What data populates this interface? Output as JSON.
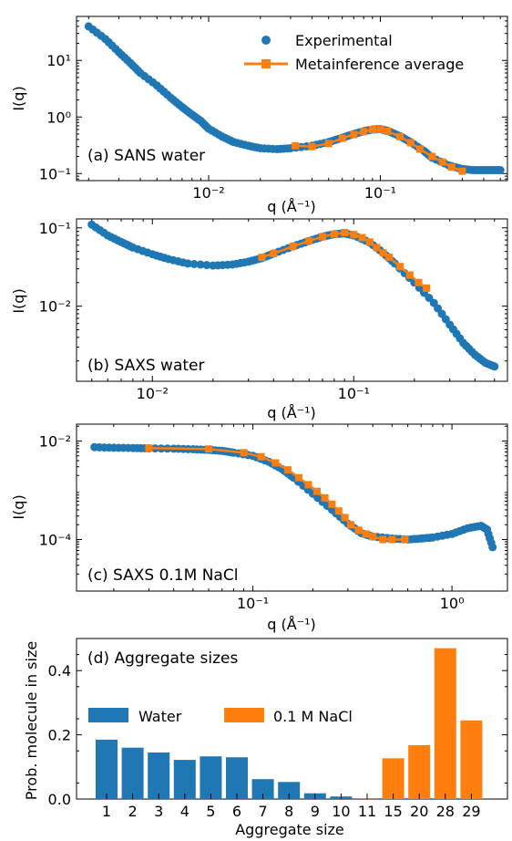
{
  "colors": {
    "blue": "#1f77b4",
    "orange": "#ff7f0e"
  },
  "chart_data": [
    {
      "type": "scatter",
      "panel_label": "(a) SANS water",
      "xlabel": "q (Å⁻¹)",
      "ylabel": "I(q)",
      "xscale": "log",
      "yscale": "log",
      "xlim": [
        0.0017,
        0.55
      ],
      "ylim": [
        0.075,
        60
      ],
      "xticks": [
        {
          "v": 0.01,
          "label": "10⁻²"
        },
        {
          "v": 0.1,
          "label": "10⁻¹"
        }
      ],
      "yticks": [
        {
          "v": 0.1,
          "label": "10⁻¹"
        },
        {
          "v": 1,
          "label": "10⁰"
        },
        {
          "v": 10,
          "label": "10¹"
        }
      ],
      "legend": {
        "position": "top-right",
        "entries": [
          "Experimental",
          "Metainference average"
        ]
      },
      "series": [
        {
          "name": "Experimental",
          "points": [
            [
              0.002,
              40
            ],
            [
              0.0025,
              24
            ],
            [
              0.003,
              14
            ],
            [
              0.0035,
              9
            ],
            [
              0.004,
              6
            ],
            [
              0.005,
              3.6
            ],
            [
              0.006,
              2.2
            ],
            [
              0.007,
              1.5
            ],
            [
              0.008,
              1.1
            ],
            [
              0.009,
              0.85
            ],
            [
              0.01,
              0.62
            ],
            [
              0.012,
              0.45
            ],
            [
              0.014,
              0.36
            ],
            [
              0.017,
              0.31
            ],
            [
              0.02,
              0.28
            ],
            [
              0.025,
              0.27
            ],
            [
              0.03,
              0.28
            ],
            [
              0.04,
              0.31
            ],
            [
              0.05,
              0.36
            ],
            [
              0.06,
              0.43
            ],
            [
              0.07,
              0.5
            ],
            [
              0.08,
              0.56
            ],
            [
              0.09,
              0.6
            ],
            [
              0.1,
              0.61
            ],
            [
              0.11,
              0.57
            ],
            [
              0.13,
              0.46
            ],
            [
              0.15,
              0.36
            ],
            [
              0.18,
              0.25
            ],
            [
              0.2,
              0.19
            ],
            [
              0.25,
              0.14
            ],
            [
              0.3,
              0.12
            ],
            [
              0.35,
              0.115
            ],
            [
              0.4,
              0.115
            ],
            [
              0.45,
              0.115
            ],
            [
              0.5,
              0.115
            ]
          ]
        },
        {
          "name": "Metainference average",
          "points": [
            [
              0.032,
              0.31
            ],
            [
              0.04,
              0.3
            ],
            [
              0.05,
              0.34
            ],
            [
              0.06,
              0.42
            ],
            [
              0.07,
              0.49
            ],
            [
              0.08,
              0.55
            ],
            [
              0.09,
              0.6
            ],
            [
              0.1,
              0.6
            ],
            [
              0.11,
              0.56
            ],
            [
              0.13,
              0.45
            ],
            [
              0.15,
              0.35
            ],
            [
              0.17,
              0.27
            ],
            [
              0.2,
              0.2
            ],
            [
              0.23,
              0.16
            ],
            [
              0.26,
              0.13
            ],
            [
              0.3,
              0.11
            ]
          ]
        }
      ]
    },
    {
      "type": "scatter",
      "panel_label": "(b) SAXS water",
      "xlabel": "q (Å⁻¹)",
      "ylabel": "I(q)",
      "xscale": "log",
      "yscale": "log",
      "xlim": [
        0.0042,
        0.58
      ],
      "ylim": [
        0.0011,
        0.13
      ],
      "xticks": [
        {
          "v": 0.01,
          "label": "10⁻²"
        },
        {
          "v": 0.1,
          "label": "10⁻¹"
        }
      ],
      "yticks": [
        {
          "v": 0.01,
          "label": "10⁻²"
        },
        {
          "v": 0.1,
          "label": "10⁻¹"
        }
      ],
      "series": [
        {
          "name": "Experimental",
          "points": [
            [
              0.005,
              0.11
            ],
            [
              0.006,
              0.08
            ],
            [
              0.007,
              0.066
            ],
            [
              0.008,
              0.056
            ],
            [
              0.01,
              0.046
            ],
            [
              0.012,
              0.04
            ],
            [
              0.015,
              0.035
            ],
            [
              0.02,
              0.033
            ],
            [
              0.025,
              0.034
            ],
            [
              0.03,
              0.037
            ],
            [
              0.035,
              0.041
            ],
            [
              0.04,
              0.047
            ],
            [
              0.05,
              0.058
            ],
            [
              0.06,
              0.068
            ],
            [
              0.07,
              0.077
            ],
            [
              0.08,
              0.083
            ],
            [
              0.09,
              0.085
            ],
            [
              0.1,
              0.08
            ],
            [
              0.12,
              0.065
            ],
            [
              0.14,
              0.048
            ],
            [
              0.16,
              0.035
            ],
            [
              0.2,
              0.02
            ],
            [
              0.25,
              0.011
            ],
            [
              0.3,
              0.0058
            ],
            [
              0.35,
              0.0034
            ],
            [
              0.4,
              0.0024
            ],
            [
              0.45,
              0.0019
            ],
            [
              0.5,
              0.0017
            ]
          ]
        },
        {
          "name": "Metainference average",
          "points": [
            [
              0.035,
              0.042
            ],
            [
              0.04,
              0.047
            ],
            [
              0.05,
              0.058
            ],
            [
              0.06,
              0.068
            ],
            [
              0.07,
              0.077
            ],
            [
              0.08,
              0.083
            ],
            [
              0.09,
              0.087
            ],
            [
              0.1,
              0.082
            ],
            [
              0.11,
              0.075
            ],
            [
              0.12,
              0.066
            ],
            [
              0.13,
              0.056
            ],
            [
              0.14,
              0.048
            ],
            [
              0.15,
              0.042
            ],
            [
              0.17,
              0.032
            ],
            [
              0.19,
              0.025
            ],
            [
              0.21,
              0.02
            ],
            [
              0.23,
              0.017
            ]
          ]
        }
      ]
    },
    {
      "type": "scatter",
      "panel_label": "(c) SAXS 0.1M NaCl",
      "xlabel": "q (Å⁻¹)",
      "ylabel": "I(q)",
      "xscale": "log",
      "yscale": "log",
      "xlim": [
        0.013,
        1.9
      ],
      "ylim": [
        9e-06,
        0.022
      ],
      "xticks": [
        {
          "v": 0.1,
          "label": "10⁻¹"
        },
        {
          "v": 1,
          "label": "10⁰"
        }
      ],
      "yticks": [
        {
          "v": 0.0001,
          "label": "10⁻⁴"
        },
        {
          "v": 0.01,
          "label": "10⁻²"
        }
      ],
      "series": [
        {
          "name": "Experimental",
          "points": [
            [
              0.016,
              0.0075
            ],
            [
              0.02,
              0.0073
            ],
            [
              0.025,
              0.0072
            ],
            [
              0.03,
              0.0071
            ],
            [
              0.04,
              0.007
            ],
            [
              0.05,
              0.0068
            ],
            [
              0.06,
              0.0066
            ],
            [
              0.07,
              0.0063
            ],
            [
              0.08,
              0.0058
            ],
            [
              0.1,
              0.005
            ],
            [
              0.12,
              0.0038
            ],
            [
              0.14,
              0.0027
            ],
            [
              0.16,
              0.0018
            ],
            [
              0.2,
              0.00085
            ],
            [
              0.25,
              0.0004
            ],
            [
              0.3,
              0.00021
            ],
            [
              0.35,
              0.000135
            ],
            [
              0.4,
              0.000115
            ],
            [
              0.5,
              0.000105
            ],
            [
              0.6,
              0.0001
            ],
            [
              0.7,
              0.000105
            ],
            [
              0.8,
              0.00011
            ],
            [
              1.0,
              0.00013
            ],
            [
              1.2,
              0.00017
            ],
            [
              1.4,
              0.00019
            ],
            [
              1.5,
              0.00016
            ],
            [
              1.6,
              7e-05
            ]
          ]
        },
        {
          "name": "Metainference average",
          "points": [
            [
              0.03,
              0.0072
            ],
            [
              0.06,
              0.0069
            ],
            [
              0.09,
              0.0058
            ],
            [
              0.11,
              0.0048
            ],
            [
              0.13,
              0.0036
            ],
            [
              0.15,
              0.0026
            ],
            [
              0.17,
              0.0018
            ],
            [
              0.19,
              0.0013
            ],
            [
              0.21,
              0.00095
            ],
            [
              0.23,
              0.0007
            ],
            [
              0.25,
              0.00052
            ],
            [
              0.27,
              0.00038
            ],
            [
              0.29,
              0.00028
            ],
            [
              0.31,
              0.0002
            ],
            [
              0.34,
              0.000155
            ],
            [
              0.37,
              0.00013
            ],
            [
              0.4,
              0.000115
            ],
            [
              0.45,
              0.0001
            ],
            [
              0.5,
              0.0001
            ],
            [
              0.58,
              0.0001
            ]
          ]
        }
      ]
    },
    {
      "type": "bar",
      "panel_label": "(d) Aggregate sizes",
      "xlabel": "Aggregate size",
      "ylabel": "Prob. molecule in size",
      "ylim": [
        0,
        0.5
      ],
      "yticks": [
        {
          "v": 0,
          "label": "0.0"
        },
        {
          "v": 0.2,
          "label": "0.2"
        },
        {
          "v": 0.4,
          "label": "0.4"
        }
      ],
      "categories": [
        "1",
        "2",
        "3",
        "4",
        "5",
        "6",
        "7",
        "8",
        "9",
        "10",
        "11",
        "15",
        "20",
        "28",
        "29"
      ],
      "legend": {
        "position": "center-left",
        "entries": [
          "Water",
          "0.1 M NaCl"
        ]
      },
      "series": [
        {
          "name": "Water",
          "values": [
            0.185,
            0.16,
            0.145,
            0.122,
            0.133,
            0.13,
            0.062,
            0.053,
            0.018,
            0.008,
            0.002,
            0,
            0,
            0,
            0
          ]
        },
        {
          "name": "0.1 M NaCl",
          "values": [
            0,
            0,
            0,
            0,
            0,
            0,
            0,
            0,
            0,
            0,
            0,
            0.127,
            0.168,
            0.47,
            0.245
          ]
        }
      ]
    }
  ]
}
